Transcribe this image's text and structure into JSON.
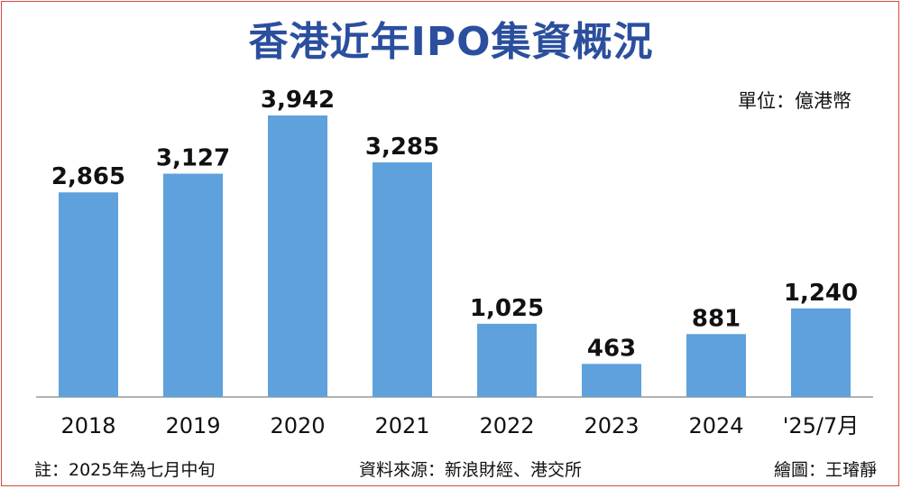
{
  "title": "香港近年IPO集資概況",
  "unit_label": "單位：億港幣",
  "footer": {
    "note": "註：2025年為七月中旬",
    "source": "資料來源：新浪財經、港交所",
    "credit": "繪圖：王璿靜"
  },
  "colors": {
    "bar": "#5ea1dc",
    "title": "#2b4f9e",
    "frame": "#d9463f"
  },
  "chart_data": {
    "type": "bar",
    "title": "香港近年IPO集資概況",
    "unit": "億港幣",
    "categories": [
      "2018",
      "2019",
      "2020",
      "2021",
      "2022",
      "2023",
      "2024",
      "'25/7月"
    ],
    "values": [
      2865,
      3127,
      3942,
      3285,
      1025,
      463,
      881,
      1240
    ],
    "value_labels": [
      "2,865",
      "3,127",
      "3,942",
      "3,285",
      "1,025",
      "463",
      "881",
      "1,240"
    ],
    "ylim": [
      0,
      3942
    ],
    "grid": false,
    "legend": false
  }
}
